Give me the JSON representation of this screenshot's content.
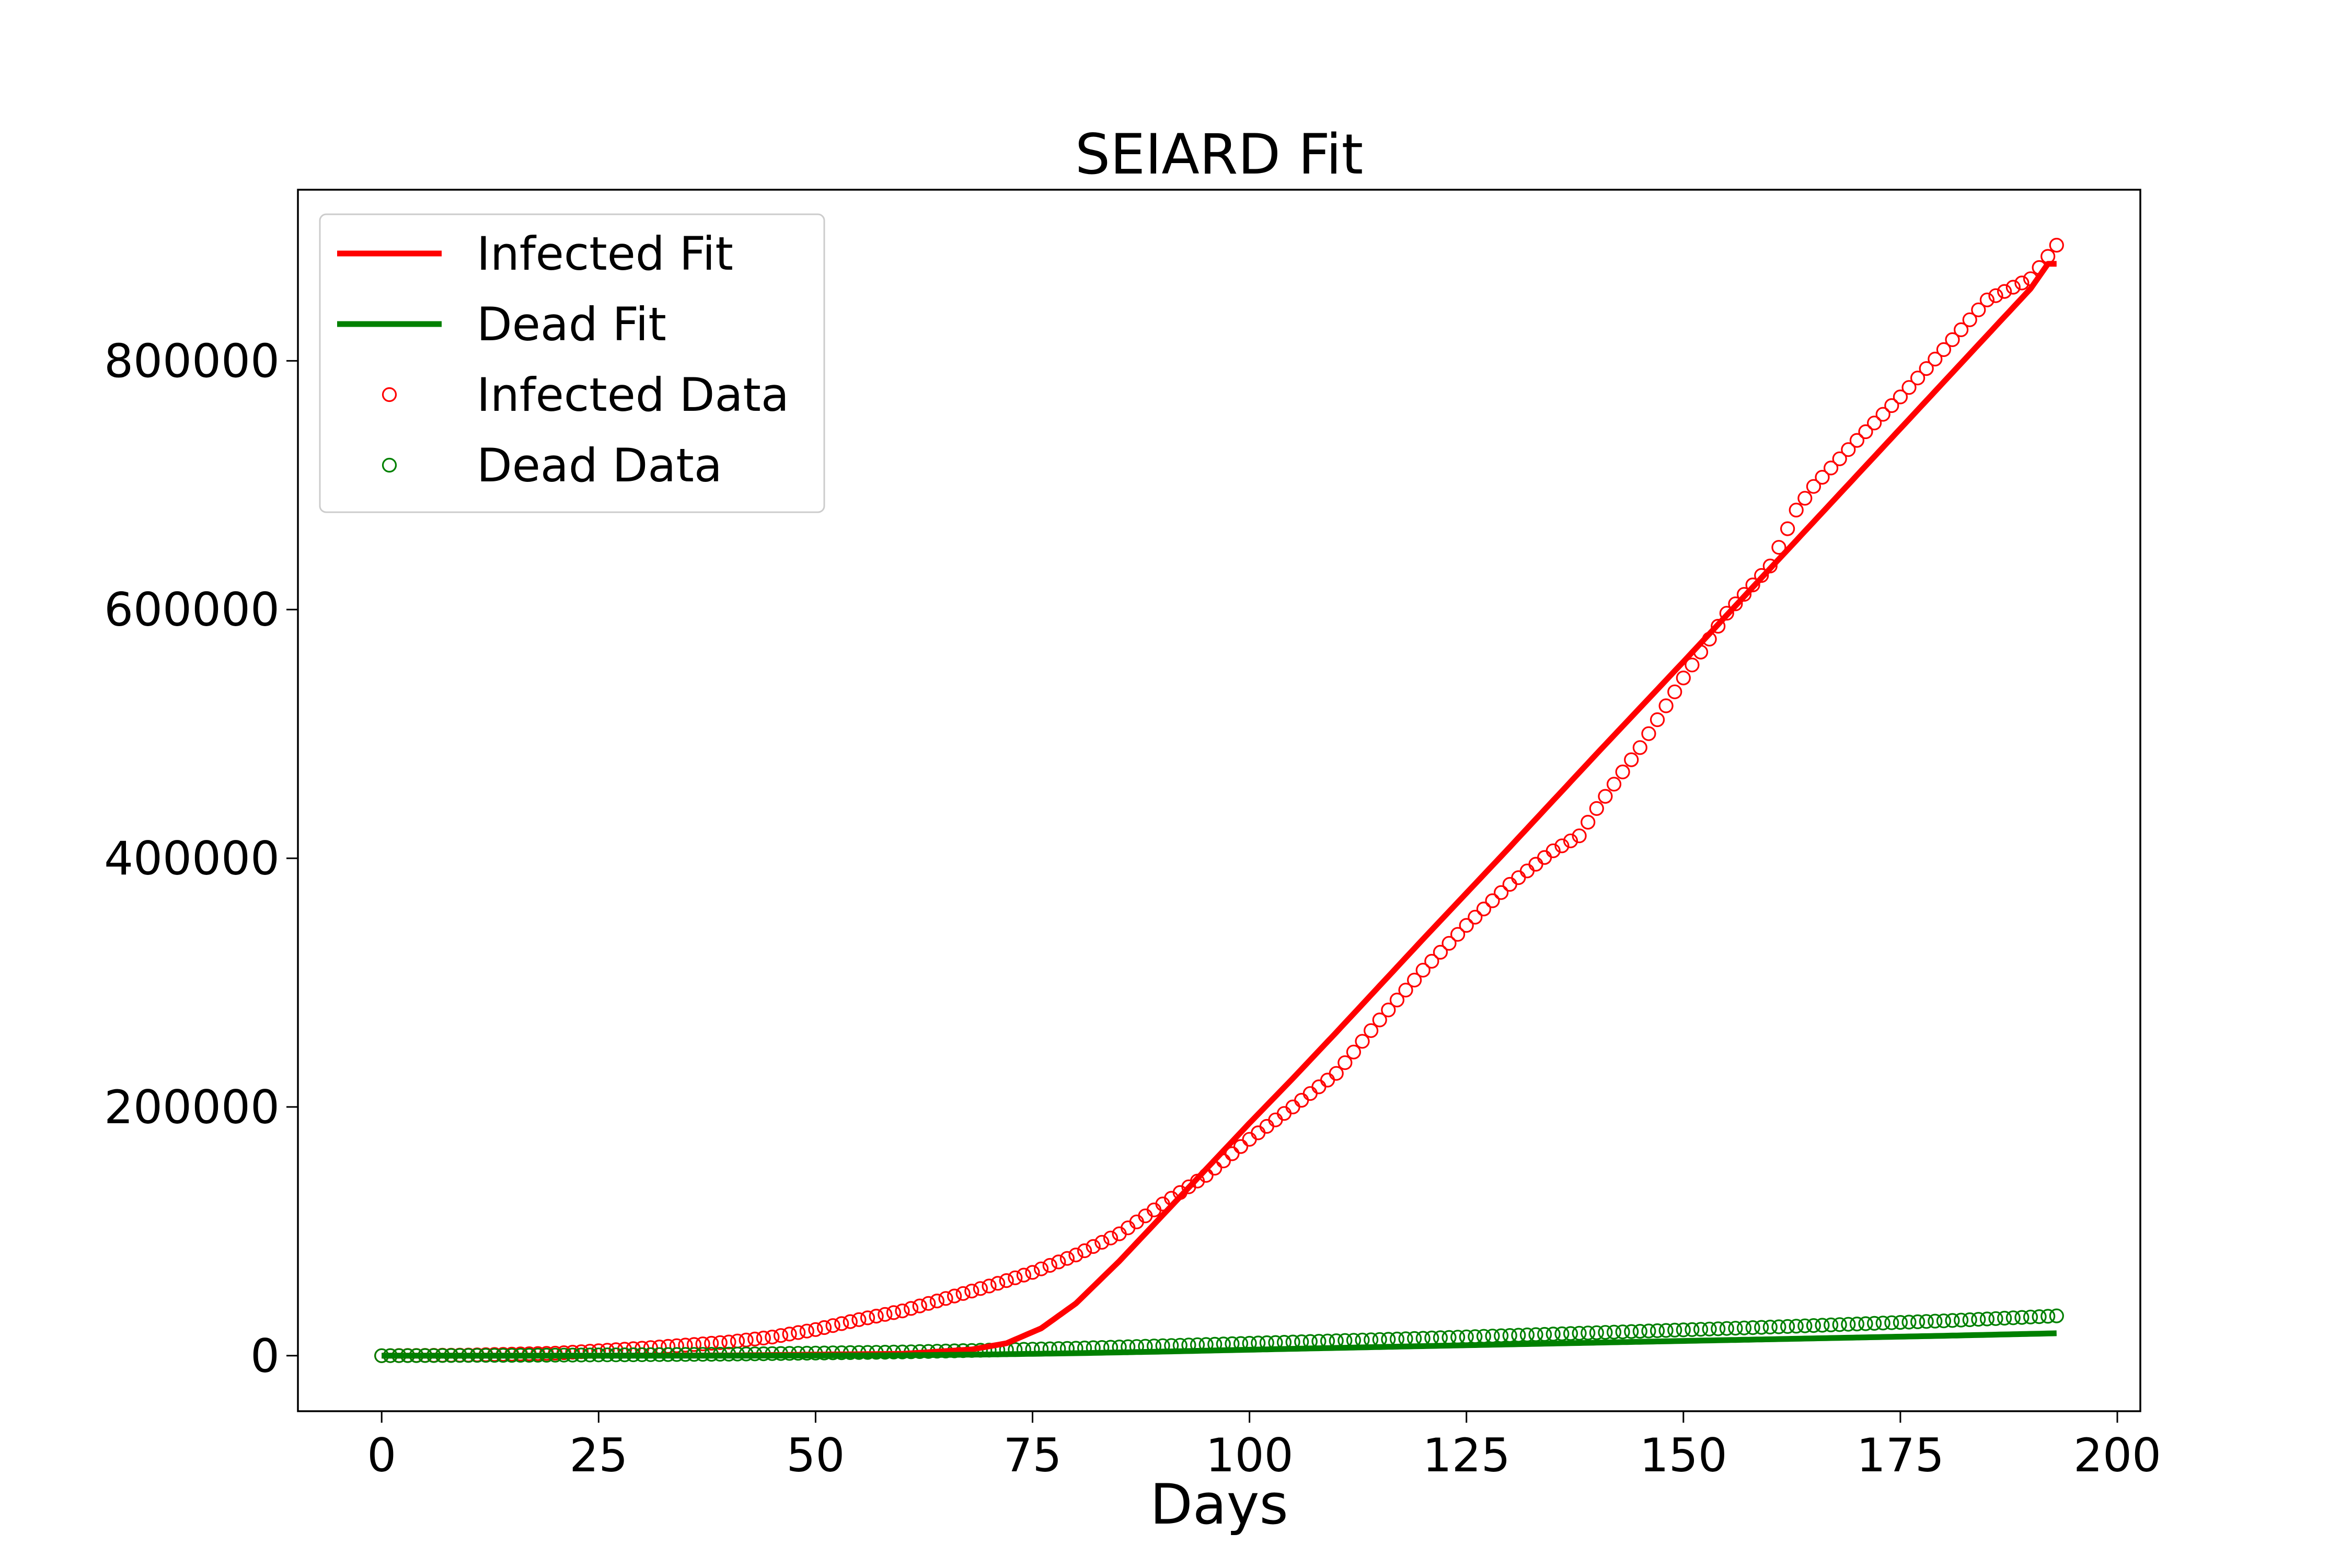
{
  "chart_data": {
    "type": "line",
    "title": "SEIARD Fit",
    "xlabel": "Days",
    "ylabel": "",
    "xlim": [
      -9.65,
      202.65
    ],
    "ylim": [
      -44647,
      937587
    ],
    "xticks": [
      0,
      25,
      50,
      75,
      100,
      125,
      150,
      175,
      200
    ],
    "yticks": [
      0,
      200000,
      400000,
      600000,
      800000
    ],
    "xtick_labels": [
      "0",
      "25",
      "50",
      "75",
      "100",
      "125",
      "150",
      "175",
      "200"
    ],
    "ytick_labels": [
      "0",
      "200000",
      "400000",
      "600000",
      "800000"
    ],
    "grid": false,
    "legend_position": "upper-left",
    "colors": {
      "infected": "#ff0000",
      "dead": "#008000",
      "axes": "#000000",
      "legend_border": "#cccccc"
    },
    "legend": [
      {
        "label": "Infected Fit",
        "kind": "line",
        "color": "#ff0000"
      },
      {
        "label": "Dead Fit",
        "kind": "line",
        "color": "#008000"
      },
      {
        "label": "Infected Data",
        "kind": "marker",
        "color": "#ff0000"
      },
      {
        "label": "Dead Data",
        "kind": "marker",
        "color": "#008000"
      }
    ],
    "series": [
      {
        "name": "Infected Fit",
        "style": "line",
        "color": "#ff0000",
        "x": [
          0,
          20,
          40,
          60,
          68,
          72,
          76,
          80,
          85,
          90,
          95,
          100,
          105,
          110,
          120,
          130,
          140,
          150,
          160,
          170,
          180,
          190,
          192,
          193
        ],
        "y": [
          0,
          0,
          200,
          1500,
          5000,
          10000,
          22000,
          42000,
          76000,
          113000,
          150000,
          187000,
          223000,
          260000,
          335000,
          409000,
          484000,
          558000,
          633000,
          708000,
          783000,
          858000,
          878000,
          878000
        ]
      },
      {
        "name": "Dead Fit",
        "style": "line",
        "color": "#008000",
        "x": [
          0,
          40,
          60,
          70,
          80,
          90,
          100,
          120,
          140,
          160,
          180,
          193
        ],
        "y": [
          0,
          0,
          300,
          1000,
          2000,
          3300,
          4800,
          7700,
          10500,
          13200,
          16000,
          18000
        ]
      },
      {
        "name": "Infected Data",
        "style": "markers",
        "color": "#ff0000",
        "knots_x": [
          0,
          10,
          20,
          25,
          30,
          35,
          40,
          45,
          50,
          55,
          60,
          65,
          70,
          75,
          80,
          85,
          90,
          95,
          100,
          105,
          110,
          115,
          120,
          125,
          130,
          135,
          138,
          140,
          145,
          150,
          155,
          160,
          163,
          165,
          170,
          175,
          180,
          185,
          190,
          193
        ],
        "knots_y": [
          0,
          500,
          2000,
          4000,
          6000,
          8500,
          11000,
          15000,
          21000,
          29000,
          36000,
          46000,
          56000,
          67000,
          81000,
          98000,
          122000,
          145000,
          174000,
          200000,
          227000,
          270000,
          310000,
          346000,
          379000,
          406000,
          418000,
          440000,
          489000,
          545000,
          597000,
          635000,
          680000,
          699000,
          736000,
          771000,
          809000,
          849000,
          866000,
          893000
        ]
      },
      {
        "name": "Dead Data",
        "style": "markers",
        "color": "#008000",
        "knots_x": [
          0,
          20,
          40,
          60,
          80,
          100,
          120,
          140,
          160,
          180,
          193
        ],
        "knots_y": [
          0,
          400,
          1200,
          3000,
          6000,
          10000,
          14000,
          18500,
          23000,
          28000,
          32000
        ]
      }
    ]
  }
}
